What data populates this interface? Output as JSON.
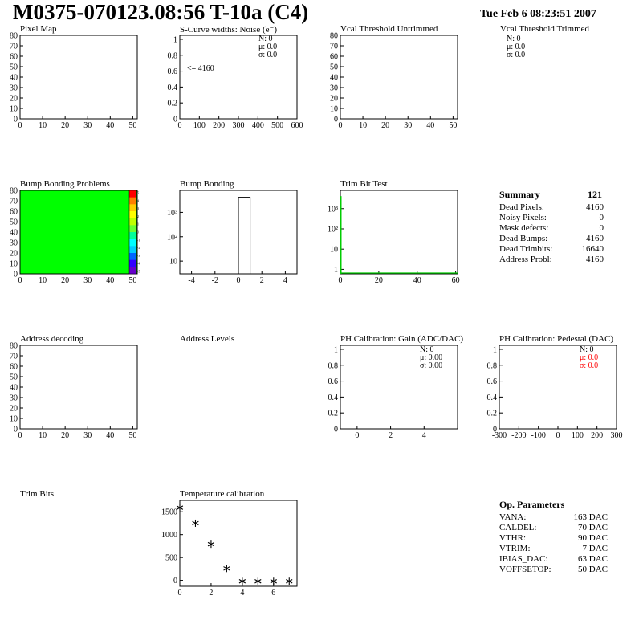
{
  "header": {
    "title": "M0375-070123.08:56 T-10a (C4)",
    "datestamp": "Tue Feb  6 08:23:51 2007"
  },
  "panel_titles": {
    "pixel_map": "Pixel Map",
    "scurve": "S-Curve widths: Noise (e⁻)",
    "vcal_untrimmed": "Vcal Threshold Untrimmed",
    "vcal_trimmed": "Vcal Threshold Trimmed",
    "bump_problems": "Bump Bonding Problems",
    "bump_bonding": "Bump Bonding",
    "trim_bit_test": "Trim Bit Test",
    "address_decoding": "Address decoding",
    "address_levels": "Address Levels",
    "ph_gain": "PH Calibration: Gain (ADC/DAC)",
    "ph_pedestal": "PH Calibration: Pedestal (DAC)",
    "trim_bits": "Trim Bits",
    "temperature": "Temperature calibration"
  },
  "stats": {
    "scurve": {
      "n": "N:    0",
      "mu": "μ:  0.0",
      "sigma": "σ:  0.0",
      "underflow": "<= 4160"
    },
    "vcal_trimmed": {
      "n": "N:    0",
      "mu": "μ:  0.0",
      "sigma": "σ:  0.0"
    },
    "ph_gain": {
      "n": "N:    0",
      "mu": "μ: 0.00",
      "sigma": "σ: 0.00"
    },
    "ph_pedestal": {
      "n": "N:    0",
      "mu": "μ:  0.0",
      "sigma": "σ:  0.0"
    }
  },
  "summary": {
    "title": "Summary",
    "total": "121",
    "rows": [
      {
        "label": "Dead Pixels:",
        "value": "4160"
      },
      {
        "label": "Noisy Pixels:",
        "value": "0"
      },
      {
        "label": "Mask defects:",
        "value": "0"
      },
      {
        "label": "Dead Bumps:",
        "value": "4160"
      },
      {
        "label": "Dead Trimbits:",
        "value": "16640"
      },
      {
        "label": "Address Probl:",
        "value": "4160"
      }
    ]
  },
  "op_params": {
    "title": "Op. Parameters",
    "rows": [
      {
        "label": "VANA:",
        "value": "163 DAC"
      },
      {
        "label": "CALDEL:",
        "value": "70 DAC"
      },
      {
        "label": "VTHR:",
        "value": "90 DAC"
      },
      {
        "label": "VTRIM:",
        "value": "7 DAC"
      },
      {
        "label": "IBIAS_DAC:",
        "value": "63 DAC"
      },
      {
        "label": "VOFFSETOP:",
        "value": "50 DAC"
      }
    ]
  },
  "colors": {
    "map_fill": "#00ff00",
    "pedestal_stats": "#ff0000",
    "trim_line": "#00cc00"
  },
  "chart_data": [
    {
      "id": "pixel_map",
      "type": "heatmap",
      "title": "Pixel Map",
      "xlim": [
        0,
        52
      ],
      "ylim": [
        0,
        80
      ],
      "xticks": [
        0,
        10,
        20,
        30,
        40,
        50
      ],
      "yticks": [
        0,
        10,
        20,
        30,
        40,
        50,
        60,
        70,
        80
      ]
    },
    {
      "id": "scurve",
      "type": "bar",
      "title": "S-Curve widths: Noise (e⁻)",
      "xlim": [
        0,
        600
      ],
      "ylim": [
        0,
        1.05
      ],
      "xticks": [
        0,
        100,
        200,
        300,
        400,
        500,
        600
      ],
      "yticks": [
        0,
        0.2,
        0.4,
        0.6,
        0.8,
        1
      ]
    },
    {
      "id": "vcal_untrimmed",
      "type": "heatmap",
      "title": "Vcal Threshold Untrimmed",
      "xlim": [
        0,
        52
      ],
      "ylim": [
        0,
        80
      ],
      "xticks": [
        0,
        10,
        20,
        30,
        40,
        50
      ],
      "yticks": [
        0,
        10,
        20,
        30,
        40,
        50,
        60,
        70,
        80
      ]
    },
    {
      "id": "bump_problems",
      "type": "heatmap",
      "title": "Bump Bonding Problems",
      "xlim": [
        0,
        52
      ],
      "ylim": [
        0,
        80
      ],
      "xticks": [
        0,
        10,
        20,
        30,
        40,
        50
      ],
      "yticks": [
        0,
        10,
        20,
        30,
        40,
        50,
        60,
        70,
        80
      ],
      "fill": "uniform",
      "palette_ticks": [
        5,
        4,
        3,
        2,
        1,
        0,
        -1,
        -2,
        -3,
        -4,
        -5
      ]
    },
    {
      "id": "bump_bonding",
      "type": "bar",
      "title": "Bump Bonding",
      "ylog": true,
      "xlim": [
        -5,
        5
      ],
      "ylim": [
        3,
        8000
      ],
      "xticks": [
        -4,
        -2,
        0,
        2,
        4
      ],
      "yticks": [
        {
          "v": 10,
          "label": "10"
        },
        {
          "v": 100,
          "label": "10²"
        },
        {
          "v": 1000,
          "label": "10³"
        }
      ],
      "bars": [
        {
          "x0": 0,
          "x1": 1,
          "value": 4160
        }
      ]
    },
    {
      "id": "trim_bit_test",
      "type": "line",
      "title": "Trim Bit Test",
      "ylog": true,
      "xlim": [
        0,
        61
      ],
      "ylim": [
        0.6,
        8000
      ],
      "xticks": [
        0,
        20,
        40,
        60
      ],
      "yticks": [
        {
          "v": 1,
          "label": "1"
        },
        {
          "v": 10,
          "label": "10"
        },
        {
          "v": 100,
          "label": "10²"
        },
        {
          "v": 1000,
          "label": "10³"
        }
      ],
      "spike": {
        "x0": 0,
        "x1": 0.6,
        "value": 4160
      }
    },
    {
      "id": "address_decoding",
      "type": "heatmap",
      "title": "Address decoding",
      "xlim": [
        0,
        52
      ],
      "ylim": [
        0,
        80
      ],
      "xticks": [
        0,
        10,
        20,
        30,
        40,
        50
      ],
      "yticks": [
        0,
        10,
        20,
        30,
        40,
        50,
        60,
        70,
        80
      ]
    },
    {
      "id": "ph_gain",
      "type": "bar",
      "title": "PH Calibration: Gain (ADC/DAC)",
      "xlim": [
        -1,
        6
      ],
      "ylim": [
        0,
        1.05
      ],
      "xticks": [
        0,
        2,
        4
      ],
      "yticks": [
        0,
        0.2,
        0.4,
        0.6,
        0.8,
        1
      ]
    },
    {
      "id": "ph_pedestal",
      "type": "bar",
      "title": "PH Calibration: Pedestal (DAC)",
      "xlim": [
        -300,
        300
      ],
      "ylim": [
        0,
        1.05
      ],
      "xticks": [
        -300,
        -200,
        -100,
        0,
        100,
        200,
        300
      ],
      "yticks": [
        0,
        0.2,
        0.4,
        0.6,
        0.8,
        1
      ]
    },
    {
      "id": "temperature",
      "type": "scatter",
      "title": "Temperature calibration",
      "xlim": [
        0,
        7.5
      ],
      "ylim": [
        -130,
        1750
      ],
      "xticks": [
        0,
        2,
        4,
        6
      ],
      "yticks": [
        0,
        500,
        1000,
        1500
      ],
      "x": [
        0,
        1,
        2,
        3,
        4,
        5,
        6,
        7
      ],
      "y": [
        1590,
        1250,
        790,
        260,
        -20,
        -20,
        -20,
        -20
      ]
    }
  ]
}
